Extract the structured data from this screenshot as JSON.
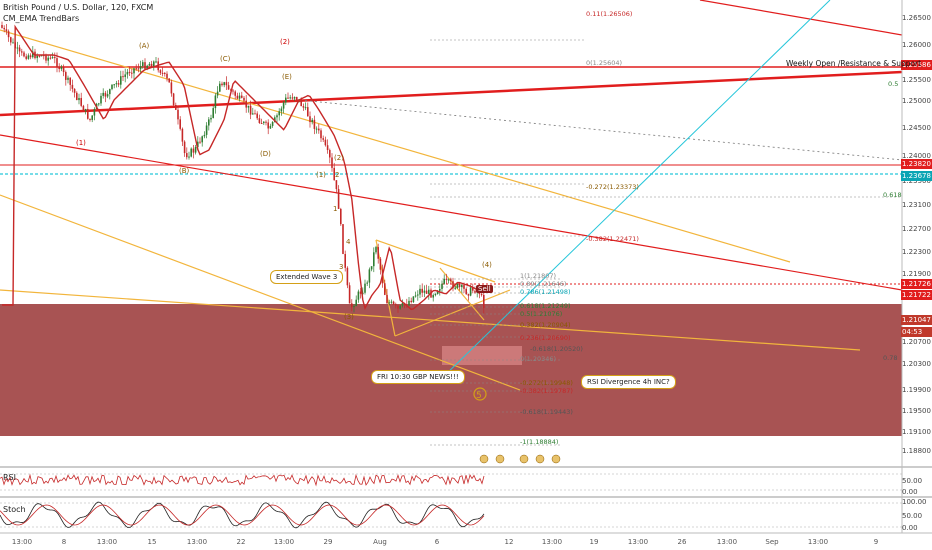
{
  "header": {
    "title": "British Pound / U.S. Dollar, 120, FXCM",
    "indicator": "CM_EMA TrendBars"
  },
  "colors": {
    "red_line": "#e11d1d",
    "gold_line": "#f2b53c",
    "cyan": "#26c6da",
    "zone": "#8b1a1a",
    "up": "#2e7d32",
    "down": "#c62828",
    "ma": "#c62828"
  },
  "price_axis": {
    "ticks": [
      "1.26500",
      "1.26000",
      "1.25500",
      "1.25000",
      "1.24500",
      "1.24000",
      "1.23500",
      "1.23100",
      "1.22700",
      "1.22300",
      "1.21900",
      "1.21500",
      "1.21100",
      "1.20700",
      "1.20300",
      "1.19900",
      "1.19500",
      "1.19100",
      "1.18800"
    ],
    "tags": [
      {
        "text": "1.25586",
        "color": "#e11d1d"
      },
      {
        "text": "1.23820",
        "color": "#e11d1d"
      },
      {
        "text": "1.23678",
        "color": "#0aa5b4"
      },
      {
        "text": "1.21726",
        "color": "#e11d1d"
      },
      {
        "text": "1.21722",
        "color": "#e11d1d"
      },
      {
        "text": "1.21047",
        "color": "#c0392b"
      },
      {
        "text": "04:53",
        "color": "#c0392b"
      }
    ]
  },
  "date_axis": [
    "13:00",
    "8",
    "13:00",
    "15",
    "13:00",
    "22",
    "13:00",
    "29",
    "Aug",
    "6",
    "12",
    "13:00",
    "19",
    "13:00",
    "26",
    "13:00",
    "Sep",
    "13:00",
    "9"
  ],
  "labels": {
    "weekly": "Weekly Open /Resistance & Support",
    "extended": "Extended Wave 3",
    "news": "FRI 10:30 GBP NEWS!!!",
    "divergence": "RSI Divergence 4h INC?",
    "sell": "Sell",
    "fib_05": "0.5",
    "fib_0618": "0.618",
    "fib_078": "0.78"
  },
  "fibs": [
    {
      "text": "0.11(1.26506)",
      "color": "#c62828"
    },
    {
      "text": "0(1.25604)",
      "color": "#888"
    },
    {
      "text": "-0.272(1.23373)",
      "color": "#8a5a00"
    },
    {
      "text": "-0.382(1.22471)",
      "color": "#c62828"
    },
    {
      "text": "1(1.21807)",
      "color": "#888"
    },
    {
      "text": "0.89(1.21646)",
      "color": "#888"
    },
    {
      "text": "0.786(1.21498)",
      "color": "#0aa5b4"
    },
    {
      "text": "0.618(1.21249)",
      "color": "#2e7d32"
    },
    {
      "text": "0.5(1.21076)",
      "color": "#2e7d32"
    },
    {
      "text": "0.382(1.20904)",
      "color": "#8a5a00"
    },
    {
      "text": "0.236(1.20690)",
      "color": "#c62828"
    },
    {
      "text": "-0.618(1.20520)",
      "color": "#555"
    },
    {
      "text": "0(1.20346)",
      "color": "#888"
    },
    {
      "text": "-0.272(1.19948)",
      "color": "#8a5a00"
    },
    {
      "text": "-0.382(1.19787)",
      "color": "#c62828"
    },
    {
      "text": "-0.618(1.19443)",
      "color": "#555"
    },
    {
      "text": "-1(1.18884)",
      "color": "#2e7d32"
    }
  ],
  "waves": [
    "(A)",
    "(B)",
    "(C)",
    "(D)",
    "(E)",
    "(1)",
    "(2)",
    "(3)",
    "(4)",
    "1",
    "2",
    "3",
    "4",
    "(1)",
    "(2)"
  ],
  "rsi": {
    "label": "RSI",
    "ticks": [
      "50.00",
      "0.00"
    ]
  },
  "stoch": {
    "label": "Stoch",
    "ticks": [
      "100.00",
      "50.00",
      "0.00"
    ]
  }
}
